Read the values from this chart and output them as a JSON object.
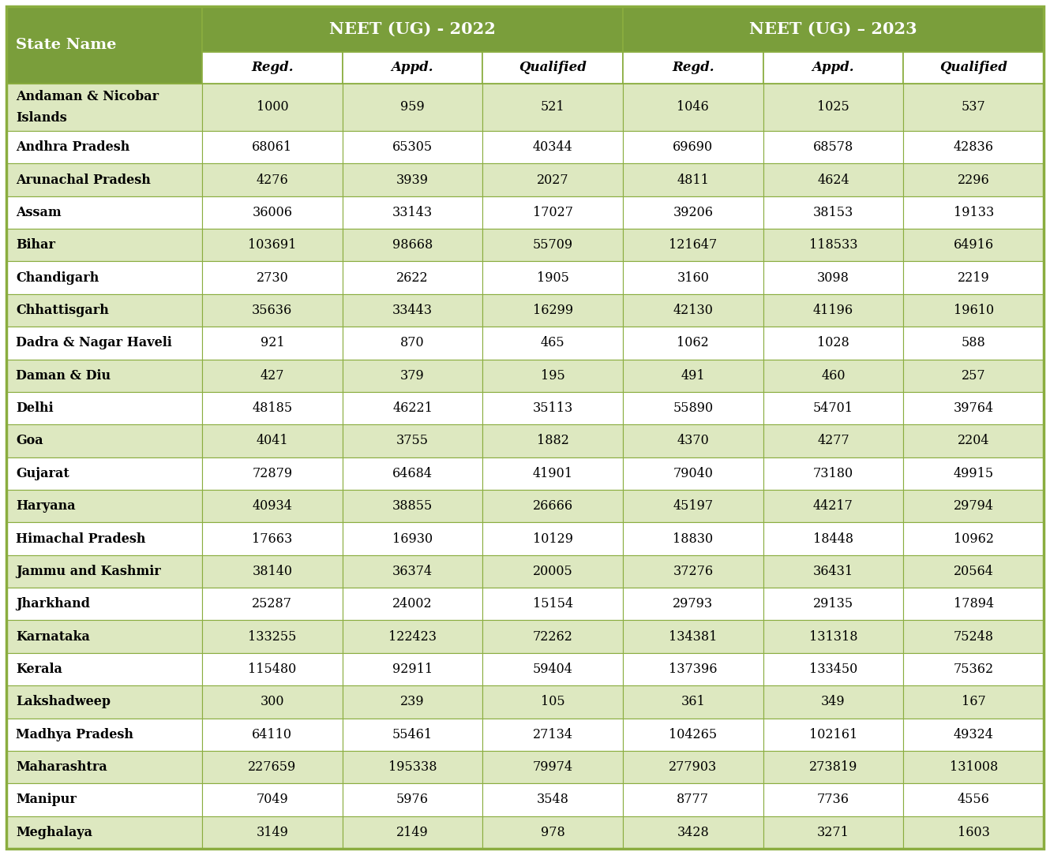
{
  "title_2022": "NEET (UG) - 2022",
  "title_2023": "NEET (UG) – 2023",
  "col_header": "State Name",
  "sub_headers": [
    "Regd.",
    "Appd.",
    "Qualified",
    "Regd.",
    "Appd.",
    "Qualified"
  ],
  "states": [
    "Andaman & Nicobar\nIslands",
    "Andhra Pradesh",
    "Arunachal Pradesh",
    "Assam",
    "Bihar",
    "Chandigarh",
    "Chhattisgarh",
    "Dadra & Nagar Haveli",
    "Daman & Diu",
    "Delhi",
    "Goa",
    "Gujarat",
    "Haryana",
    "Himachal Pradesh",
    "Jammu and Kashmir",
    "Jharkhand",
    "Karnataka",
    "Kerala",
    "Lakshadweep",
    "Madhya Pradesh",
    "Maharashtra",
    "Manipur",
    "Meghalaya"
  ],
  "data_2022": [
    [
      1000,
      959,
      521
    ],
    [
      68061,
      65305,
      40344
    ],
    [
      4276,
      3939,
      2027
    ],
    [
      36006,
      33143,
      17027
    ],
    [
      103691,
      98668,
      55709
    ],
    [
      2730,
      2622,
      1905
    ],
    [
      35636,
      33443,
      16299
    ],
    [
      921,
      870,
      465
    ],
    [
      427,
      379,
      195
    ],
    [
      48185,
      46221,
      35113
    ],
    [
      4041,
      3755,
      1882
    ],
    [
      72879,
      64684,
      41901
    ],
    [
      40934,
      38855,
      26666
    ],
    [
      17663,
      16930,
      10129
    ],
    [
      38140,
      36374,
      20005
    ],
    [
      25287,
      24002,
      15154
    ],
    [
      133255,
      122423,
      72262
    ],
    [
      115480,
      92911,
      59404
    ],
    [
      300,
      239,
      105
    ],
    [
      64110,
      55461,
      27134
    ],
    [
      227659,
      195338,
      79974
    ],
    [
      7049,
      5976,
      3548
    ],
    [
      3149,
      2149,
      978
    ]
  ],
  "data_2023": [
    [
      1046,
      1025,
      537
    ],
    [
      69690,
      68578,
      42836
    ],
    [
      4811,
      4624,
      2296
    ],
    [
      39206,
      38153,
      19133
    ],
    [
      121647,
      118533,
      64916
    ],
    [
      3160,
      3098,
      2219
    ],
    [
      42130,
      41196,
      19610
    ],
    [
      1062,
      1028,
      588
    ],
    [
      491,
      460,
      257
    ],
    [
      55890,
      54701,
      39764
    ],
    [
      4370,
      4277,
      2204
    ],
    [
      79040,
      73180,
      49915
    ],
    [
      45197,
      44217,
      29794
    ],
    [
      18830,
      18448,
      10962
    ],
    [
      37276,
      36431,
      20564
    ],
    [
      29793,
      29135,
      17894
    ],
    [
      134381,
      131318,
      75248
    ],
    [
      137396,
      133450,
      75362
    ],
    [
      361,
      349,
      167
    ],
    [
      104265,
      102161,
      49324
    ],
    [
      277903,
      273819,
      131008
    ],
    [
      8777,
      7736,
      4556
    ],
    [
      3428,
      3271,
      1603
    ]
  ],
  "header_bg": "#7a9e3b",
  "header_text": "#ffffff",
  "subheader_bg": "#ffffff",
  "subheader_text": "#000000",
  "row_bg_even": "#dde8c0",
  "row_bg_odd": "#ffffff",
  "row_text": "#000000",
  "grid_color": "#8aad3f",
  "border_color": "#8aad3f",
  "fig_width": 13.3,
  "fig_height": 10.84,
  "dpi": 100
}
